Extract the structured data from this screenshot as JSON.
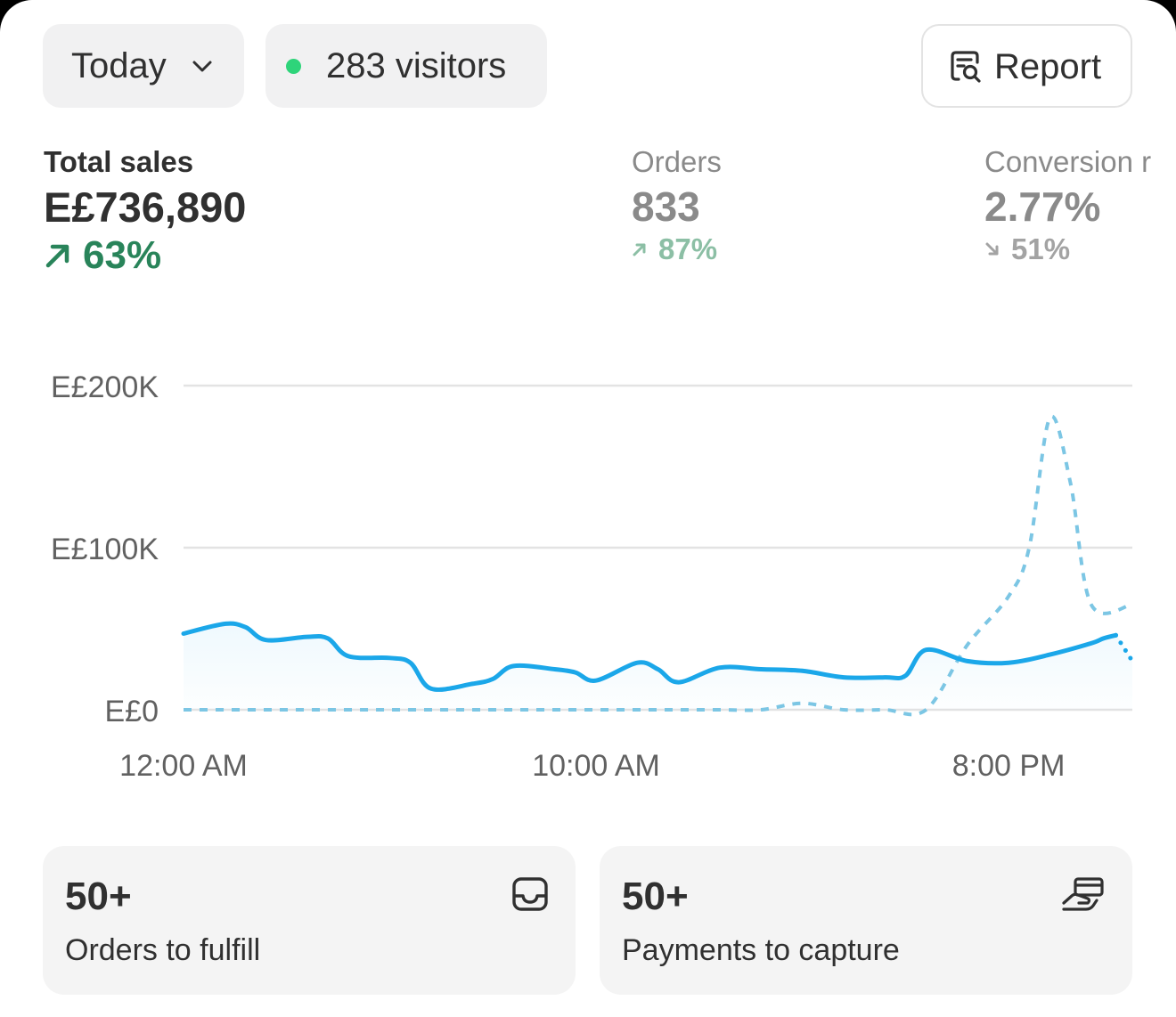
{
  "toolbar": {
    "date_range": "Today",
    "visitors": "283 visitors",
    "report_label": "Report"
  },
  "metrics": {
    "total_sales": {
      "label": "Total sales",
      "value": "E£736,890",
      "delta": "63%",
      "trend": "up"
    },
    "orders": {
      "label": "Orders",
      "value": "833",
      "delta": "87%",
      "trend": "up"
    },
    "conversion": {
      "label": "Conversion r",
      "value": "2.77%",
      "delta": "51%",
      "trend": "down"
    }
  },
  "chart_data": {
    "type": "line",
    "y_tick_labels": [
      "E£0",
      "E£100K",
      "E£200K"
    ],
    "y_ticks": [
      0,
      100000,
      200000
    ],
    "ylim": [
      0,
      200000
    ],
    "x_tick_labels": [
      "12:00 AM",
      "10:00 AM",
      "8:00 PM"
    ],
    "x_ticks": [
      0,
      10,
      20
    ],
    "xlim": [
      0,
      23
    ],
    "grid": true,
    "series": [
      {
        "style": "solid",
        "color": "#1ba7e9",
        "points": [
          [
            0,
            47000
          ],
          [
            1,
            53000
          ],
          [
            1.5,
            51000
          ],
          [
            2,
            43000
          ],
          [
            3,
            45000
          ],
          [
            3.5,
            44000
          ],
          [
            4,
            33000
          ],
          [
            5,
            32000
          ],
          [
            5.5,
            29000
          ],
          [
            6,
            13000
          ],
          [
            7,
            16000
          ],
          [
            7.5,
            19000
          ],
          [
            8,
            27000
          ],
          [
            9,
            25000
          ],
          [
            9.5,
            23000
          ],
          [
            10,
            18000
          ],
          [
            11,
            29000
          ],
          [
            11.5,
            25000
          ],
          [
            12,
            17000
          ],
          [
            13,
            26000
          ],
          [
            14,
            25000
          ],
          [
            15,
            24000
          ],
          [
            16,
            20000
          ],
          [
            17,
            20000
          ],
          [
            17.5,
            21000
          ],
          [
            18,
            37000
          ],
          [
            19,
            30000
          ],
          [
            20,
            29000
          ],
          [
            21,
            34000
          ],
          [
            22,
            41000
          ],
          [
            22.3,
            44000
          ],
          [
            22.6,
            46000
          ]
        ]
      },
      {
        "style": "dotted",
        "color": "#1ba7e9",
        "points": [
          [
            22.6,
            46000
          ],
          [
            23,
            30000
          ]
        ]
      },
      {
        "style": "dashed",
        "color": "#7cc6e4",
        "points": [
          [
            0,
            0
          ],
          [
            1,
            0
          ],
          [
            2,
            0
          ],
          [
            3,
            0
          ],
          [
            4,
            0
          ],
          [
            5,
            0
          ],
          [
            6,
            0
          ],
          [
            7,
            0
          ],
          [
            8,
            0
          ],
          [
            9,
            0
          ],
          [
            10,
            0
          ],
          [
            11,
            0
          ],
          [
            12,
            0
          ],
          [
            13,
            0
          ],
          [
            14,
            0
          ],
          [
            15,
            4000
          ],
          [
            16,
            0
          ],
          [
            17,
            0
          ],
          [
            18,
            0
          ],
          [
            19,
            40000
          ],
          [
            20,
            70000
          ],
          [
            20.5,
            100000
          ],
          [
            21,
            180000
          ],
          [
            21.5,
            140000
          ],
          [
            22,
            65000
          ],
          [
            23,
            65000
          ]
        ]
      }
    ]
  },
  "cards": [
    {
      "count": "50+",
      "label": "Orders to fulfill",
      "icon": "inbox-icon"
    },
    {
      "count": "50+",
      "label": "Payments to capture",
      "icon": "hand-card-icon"
    }
  ]
}
